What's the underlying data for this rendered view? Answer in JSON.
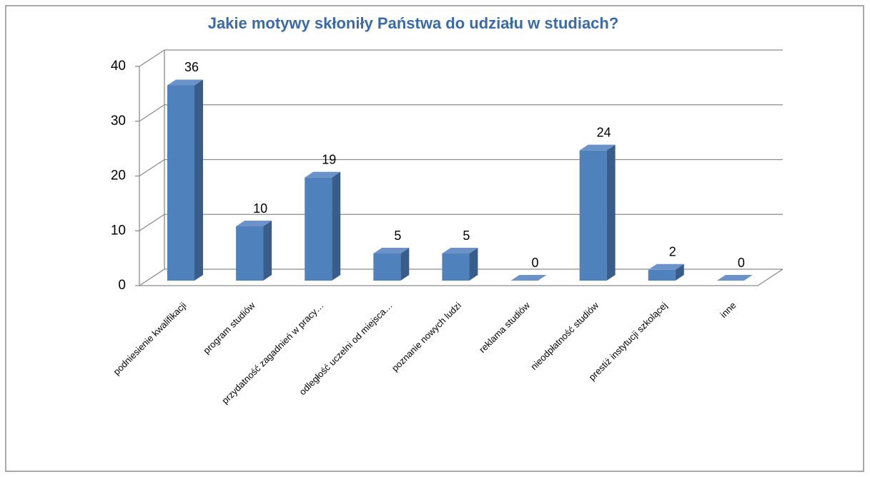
{
  "chart_data": {
    "type": "bar3d",
    "title": "Jakie motywy skłoniły Państwa do udziału w studiach?",
    "categories": [
      "podniesienie kwalifikacji",
      "program studiów",
      "przydatność zagadnień w pracy…",
      "odległość uczelni od miejsca…",
      "poznanie nowych ludzi",
      "reklama studiów",
      "nieodpłatność studiów",
      "prestiż instytucji szkolącej",
      "inne"
    ],
    "values": [
      36,
      10,
      19,
      5,
      5,
      0,
      24,
      2,
      0
    ],
    "color": "#4f81bd",
    "ylim": [
      0,
      40
    ],
    "yticks": [
      0,
      10,
      20,
      30,
      40
    ],
    "grid": true
  }
}
